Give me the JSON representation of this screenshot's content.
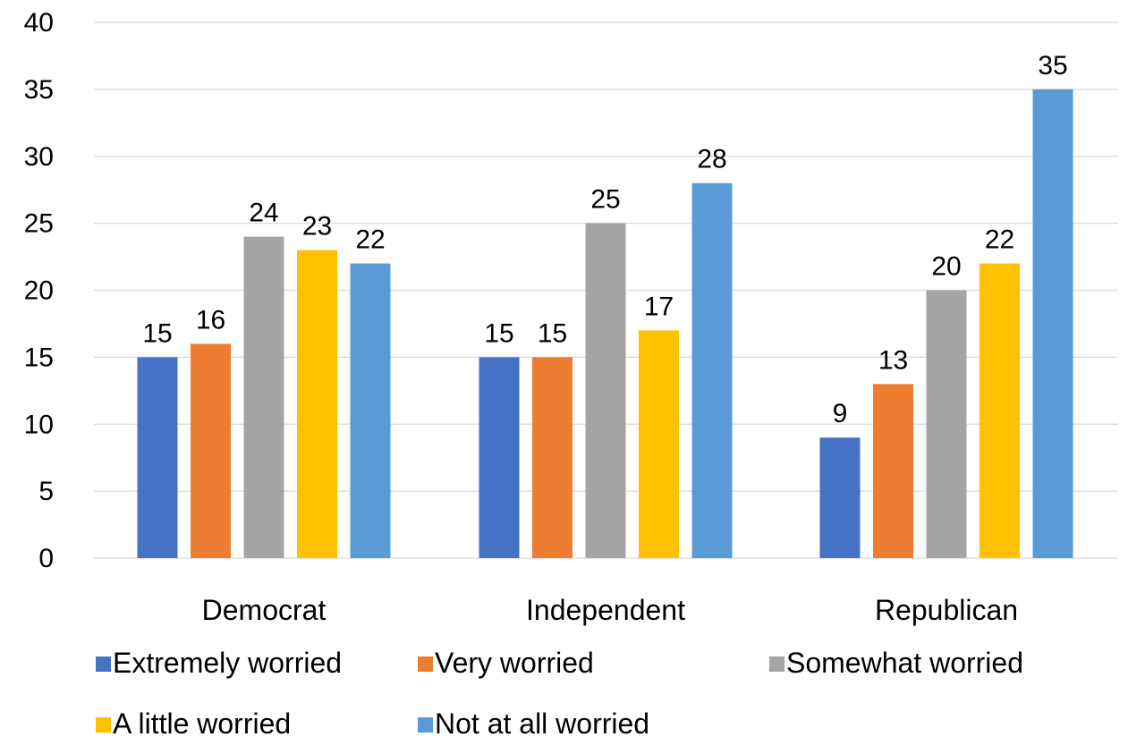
{
  "chart_data": {
    "type": "bar",
    "title": "",
    "xlabel": "",
    "ylabel": "",
    "categories": [
      "Democrat",
      "Independent",
      "Republican"
    ],
    "ylim": [
      0,
      40
    ],
    "yticks": [
      0,
      5,
      10,
      15,
      20,
      25,
      30,
      35,
      40
    ],
    "grid": true,
    "legend_position": "bottom",
    "data_labels": true,
    "series": [
      {
        "name": "Extremely worried",
        "color": "#4472C4",
        "values": [
          15,
          15,
          9
        ]
      },
      {
        "name": "Very worried",
        "color": "#ED7D31",
        "values": [
          16,
          15,
          13
        ]
      },
      {
        "name": "Somewhat worried",
        "color": "#A5A5A5",
        "values": [
          24,
          25,
          20
        ]
      },
      {
        "name": "A little worried",
        "color": "#FFC000",
        "values": [
          23,
          17,
          22
        ]
      },
      {
        "name": "Not at all worried",
        "color": "#5B9BD5",
        "values": [
          22,
          28,
          35
        ]
      }
    ]
  }
}
